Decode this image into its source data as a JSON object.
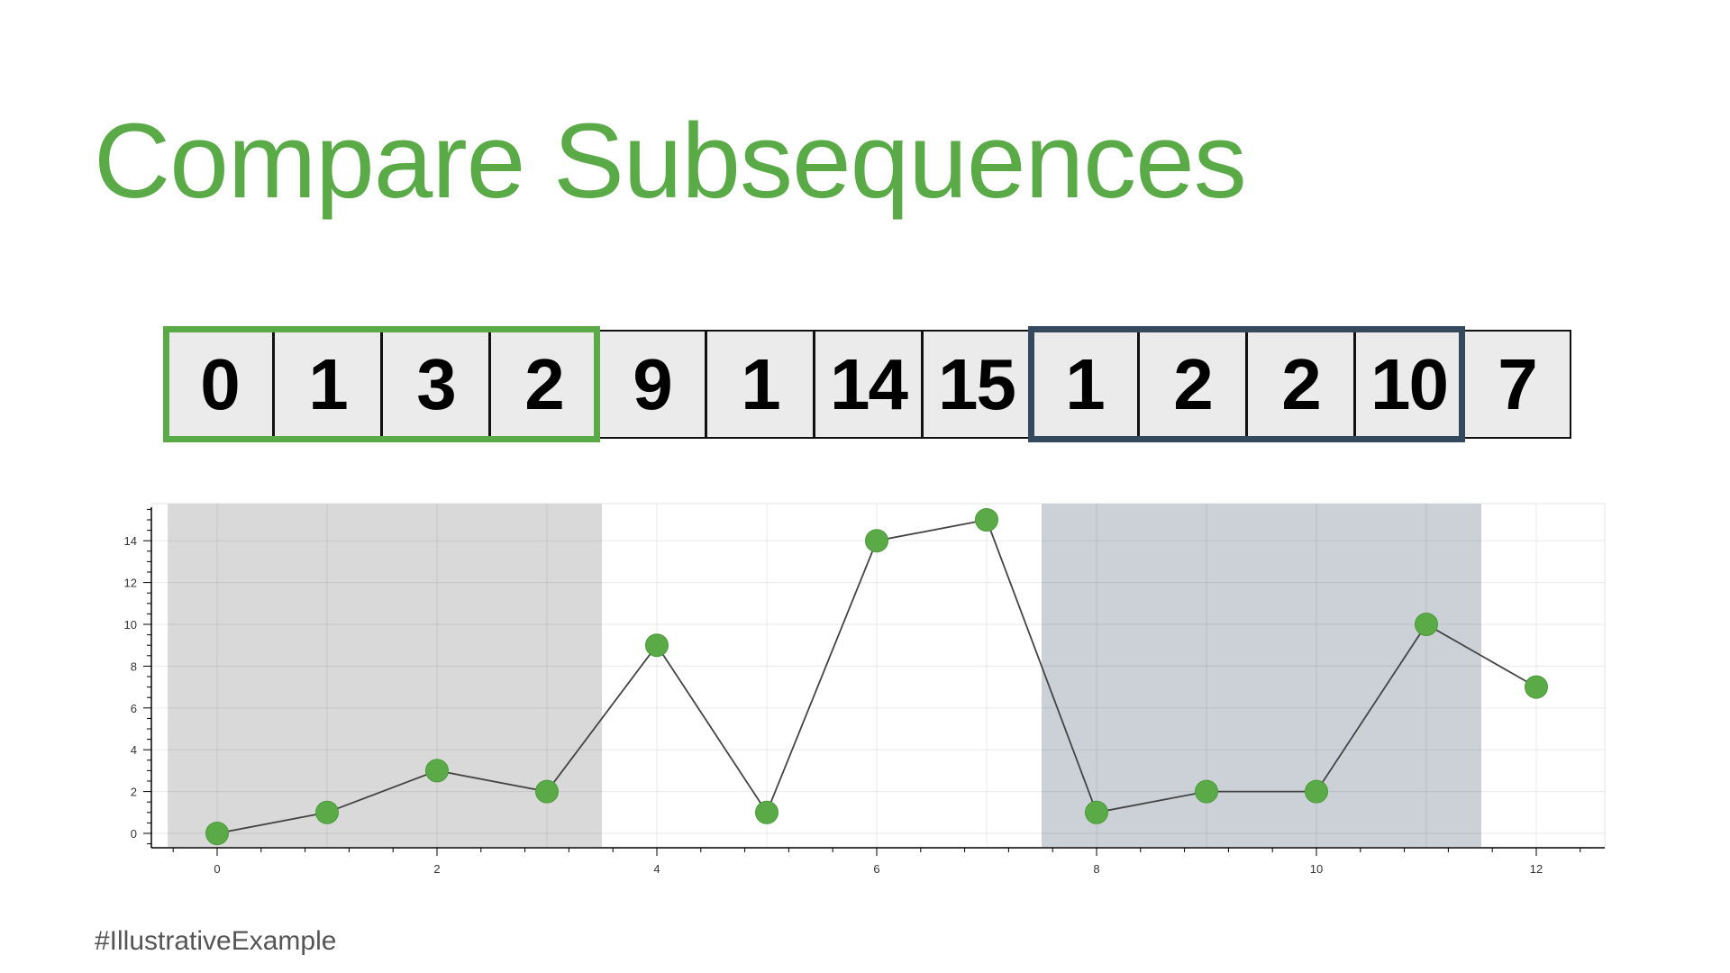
{
  "title": "Compare Subsequences",
  "footer": "#IllustrativeExample",
  "sequence": [
    "0",
    "1",
    "3",
    "2",
    "9",
    "1",
    "14",
    "15",
    "1",
    "2",
    "2",
    "10",
    "7"
  ],
  "windows": [
    {
      "start_index": 0,
      "end_index": 3,
      "color": "#5aab48",
      "shade": "#d9d9d9"
    },
    {
      "start_index": 8,
      "end_index": 11,
      "color": "#34495e",
      "shade": "#ccd1d7"
    }
  ],
  "colors": {
    "title": "#5aab48",
    "point": "#5aab48",
    "line": "#444444",
    "grid": "#e8e8e8"
  },
  "chart_data": {
    "type": "line",
    "title": "",
    "xlabel": "",
    "ylabel": "",
    "x": [
      0,
      1,
      2,
      3,
      4,
      5,
      6,
      7,
      8,
      9,
      10,
      11,
      12
    ],
    "series": [
      {
        "values": [
          0,
          1,
          3,
          2,
          9,
          1,
          14,
          15,
          1,
          2,
          2,
          10,
          7
        ]
      }
    ],
    "xlim": [
      -0.4,
      12.4
    ],
    "ylim": [
      -0.7,
      15.8
    ],
    "xticks": [
      "0",
      "2",
      "4",
      "6",
      "8",
      "10",
      "12"
    ],
    "yticks": [
      "0",
      "2",
      "4",
      "6",
      "8",
      "10",
      "12",
      "14"
    ],
    "shaded_ranges": [
      [
        -0.45,
        3.5
      ],
      [
        7.5,
        11.5
      ]
    ],
    "markers": true,
    "grid": true,
    "legend": "none"
  }
}
